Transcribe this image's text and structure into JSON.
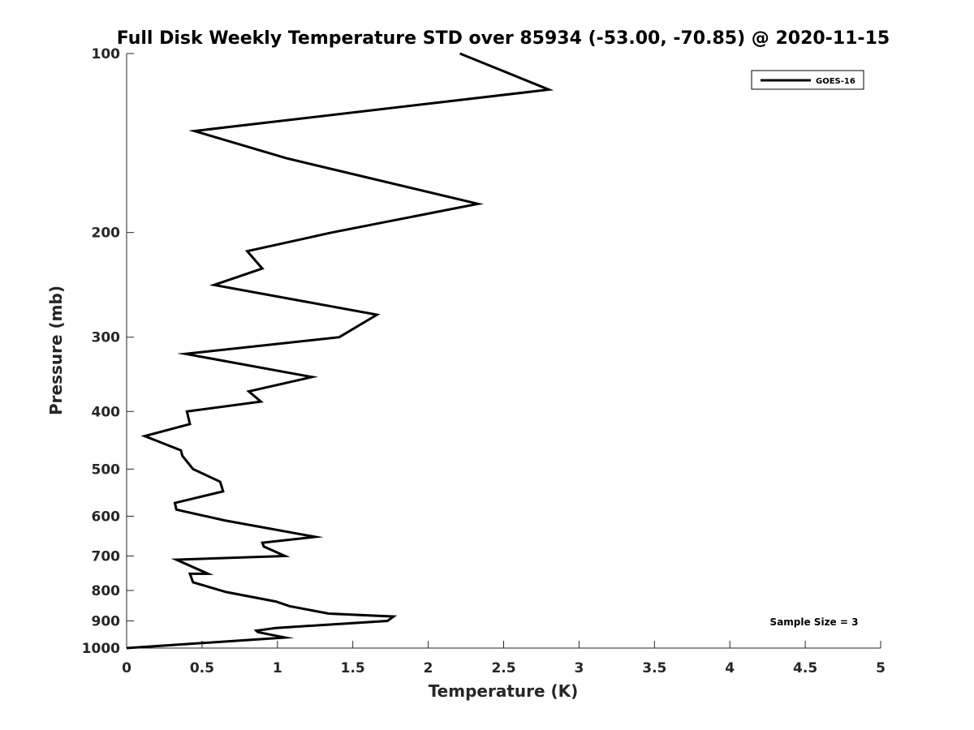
{
  "chart_data": {
    "type": "line",
    "title": "Full Disk Weekly Temperature STD over 85934 (-53.00, -70.85) @ 2020-11-15",
    "xlabel": "Temperature (K)",
    "ylabel": "Pressure (mb)",
    "xlim": [
      0,
      5
    ],
    "ylim": [
      100,
      1000
    ],
    "y_scale": "log",
    "y_inverted": true,
    "x_ticks": [
      "0",
      "0.5",
      "1",
      "1.5",
      "2",
      "2.5",
      "3",
      "3.5",
      "4",
      "4.5",
      "5"
    ],
    "y_ticks": [
      {
        "value": 100,
        "label": "100"
      },
      {
        "value": 200,
        "label": "200"
      },
      {
        "value": 300,
        "label": "300"
      },
      {
        "value": 400,
        "label": "400"
      },
      {
        "value": 500,
        "label": "500"
      },
      {
        "value": 600,
        "label": "600"
      },
      {
        "value": 700,
        "label": "700"
      },
      {
        "value": 800,
        "label": "800"
      },
      {
        "value": 900,
        "label": "900"
      },
      {
        "value": 1000,
        "label": "1000"
      }
    ],
    "grid": false,
    "legend_position": "top-right",
    "series": [
      {
        "name": "GOES-16",
        "color": "#000000",
        "points": [
          [
            2.21,
            100
          ],
          [
            2.8,
            115
          ],
          [
            0.45,
            135
          ],
          [
            1.06,
            150
          ],
          [
            2.33,
            179
          ],
          [
            1.36,
            200
          ],
          [
            0.8,
            215
          ],
          [
            0.9,
            230
          ],
          [
            0.58,
            245
          ],
          [
            1.66,
            275
          ],
          [
            1.41,
            300
          ],
          [
            0.39,
            320
          ],
          [
            1.23,
            350
          ],
          [
            0.81,
            370
          ],
          [
            0.89,
            385
          ],
          [
            0.4,
            400
          ],
          [
            0.42,
            420
          ],
          [
            0.12,
            440
          ],
          [
            0.36,
            465
          ],
          [
            0.37,
            475
          ],
          [
            0.44,
            500
          ],
          [
            0.62,
            525
          ],
          [
            0.64,
            545
          ],
          [
            0.32,
            570
          ],
          [
            0.33,
            585
          ],
          [
            0.65,
            610
          ],
          [
            1.25,
            650
          ],
          [
            0.9,
            665
          ],
          [
            0.91,
            675
          ],
          [
            1.05,
            700
          ],
          [
            0.33,
            710
          ],
          [
            0.54,
            750
          ],
          [
            0.42,
            750
          ],
          [
            0.44,
            775
          ],
          [
            0.66,
            805
          ],
          [
            0.99,
            835
          ],
          [
            1.08,
            850
          ],
          [
            1.34,
            875
          ],
          [
            1.77,
            885
          ],
          [
            1.73,
            900
          ],
          [
            0.99,
            925
          ],
          [
            0.86,
            935
          ],
          [
            0.87,
            940
          ],
          [
            1.05,
            960
          ],
          [
            0.0,
            1000
          ]
        ]
      }
    ],
    "annotations": [
      {
        "text": "Sample Size = 3",
        "position": "bottom-right"
      }
    ]
  }
}
